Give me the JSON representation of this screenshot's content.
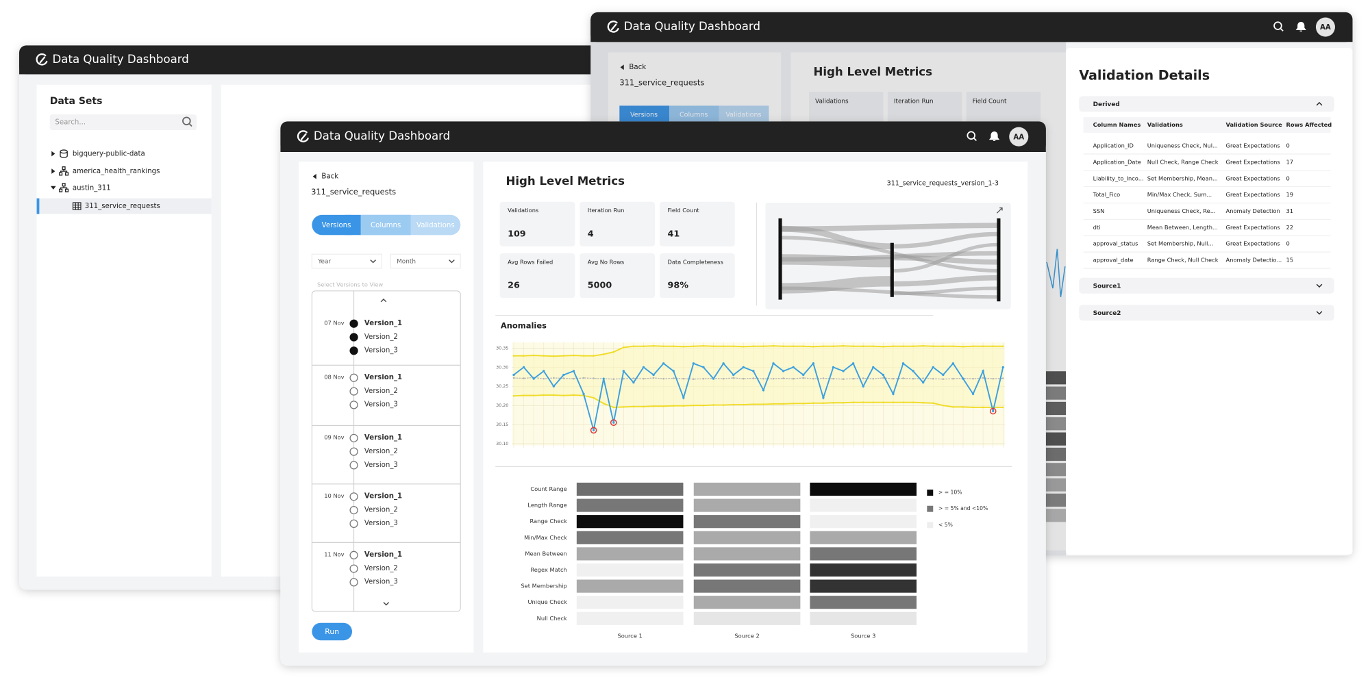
{
  "back_window": {
    "title": "Data Quality Dashboard",
    "sidebar_title": "Data Sets",
    "search_placeholder": "Search...",
    "tree": [
      "bigquery-public-data",
      "america_health_rankings",
      "austin_311",
      "311_service_requests"
    ]
  },
  "right_window": {
    "title": "Data Quality Dashboard",
    "avatar": "AA",
    "back": "Back",
    "dataset": "311_service_requests",
    "tabs": [
      "Versions",
      "Columns",
      "Validations"
    ],
    "metrics_title": "High Level Metrics",
    "metric_labels": [
      "Validations",
      "Iteration Run",
      "Field Count"
    ],
    "details": {
      "title": "Validation Details",
      "sections": [
        "Derived",
        "Source1",
        "Source2"
      ],
      "table": {
        "headers": [
          "Column Names",
          "Validations",
          "Validation Source",
          "Rows Affected"
        ],
        "rows": [
          [
            "Application_ID",
            "Uniqueness Check, Nul...",
            "Great Expectations",
            0
          ],
          [
            "Application_Date",
            "Null Check, Range Check",
            "Great Expectations",
            17
          ],
          [
            "Liability_to_Inco...",
            "Set Membership, Mean...",
            "Great Expectations",
            0
          ],
          [
            "Total_Fico",
            "Min/Max Check, Sum...",
            "Great Expectations",
            19
          ],
          [
            "SSN",
            "Uniqueness Check, Re...",
            "Anomaly Detection",
            31
          ],
          [
            "dti",
            "Mean Between, Length...",
            "Great Expectations",
            22
          ],
          [
            "approval_status",
            "Set Membership, Null...",
            "Great Expectations",
            0
          ],
          [
            "approval_date",
            "Range Check, Null Check",
            "Anomaly Detectio...",
            15
          ]
        ]
      }
    }
  },
  "front_window": {
    "title": "Data Quality Dashboard",
    "avatar": "AA",
    "back": "Back",
    "dataset": "311_service_requests",
    "tabs": [
      "Versions",
      "Columns",
      "Validations"
    ],
    "filters": [
      "Year",
      "Month"
    ],
    "versions_hint": "Select Versions to View",
    "version_groups": [
      {
        "date": "07 Nov",
        "versions": [
          "Version_1",
          "Version_2",
          "Version_3"
        ],
        "selected": true
      },
      {
        "date": "08 Nov",
        "versions": [
          "Version_1",
          "Version_2",
          "Version_3"
        ],
        "selected": false
      },
      {
        "date": "09 Nov",
        "versions": [
          "Version_1",
          "Version_2",
          "Version_3"
        ],
        "selected": false
      },
      {
        "date": "10 Nov",
        "versions": [
          "Version_1",
          "Version_2",
          "Version_3"
        ],
        "selected": false
      },
      {
        "date": "11 Nov",
        "versions": [
          "Version_1",
          "Version_2",
          "Version_3"
        ],
        "selected": false
      }
    ],
    "run": "Run",
    "metrics_title": "High Level Metrics",
    "version_label": "311_service_requests_version_1-3",
    "metrics": [
      {
        "label": "Validations",
        "value": 109
      },
      {
        "label": "Iteration Run",
        "value": 4
      },
      {
        "label": "Field Count",
        "value": 41
      },
      {
        "label": "Avg Rows Failed",
        "value": 26
      },
      {
        "label": "Avg No Rows",
        "value": 5000
      },
      {
        "label": "Data Completeness",
        "value": "98%"
      }
    ],
    "anomalies": {
      "title": "Anomalies",
      "ylim": [
        30.095,
        30.365
      ],
      "yticks": [
        30.35,
        {
          "value": 30.3,
          "label": "30.30"
        },
        30.25,
        {
          "value": 30.2,
          "label": "30.20"
        },
        30.15,
        {
          "value": 30.1,
          "label": "30.10"
        }
      ],
      "anomaly_indices": [
        8,
        10,
        48
      ],
      "anomaly_color": "#e03a3a",
      "series": [
        {
          "color": "#f0dc28",
          "values": [
            30.33,
            30.33,
            30.331,
            30.33,
            30.329,
            30.33,
            30.331,
            30.33,
            30.33,
            30.334,
            30.34,
            30.352,
            30.355,
            30.355,
            30.356,
            30.355,
            30.355,
            30.354,
            30.355,
            30.356,
            30.355,
            30.355,
            30.355,
            30.354,
            30.355,
            30.355,
            30.356,
            30.355,
            30.355,
            30.355,
            30.354,
            30.355,
            30.355,
            30.356,
            30.355,
            30.355,
            30.355,
            30.354,
            30.355,
            30.355,
            30.355,
            30.356,
            30.355,
            30.355,
            30.355,
            30.354,
            30.355,
            30.355,
            30.355,
            30.355
          ]
        },
        {
          "color": "#f0dc28",
          "values": [
            30.225,
            30.226,
            30.226,
            30.227,
            30.227,
            30.226,
            30.227,
            30.226,
            30.22,
            30.205,
            30.195,
            30.196,
            30.197,
            30.197,
            30.198,
            30.198,
            30.199,
            30.199,
            30.2,
            30.2,
            30.201,
            30.201,
            30.202,
            30.202,
            30.203,
            30.203,
            30.204,
            30.204,
            30.205,
            30.205,
            30.206,
            30.206,
            30.207,
            30.207,
            30.208,
            30.208,
            30.208,
            30.208,
            30.208,
            30.208,
            30.208,
            30.207,
            30.206,
            30.2,
            30.196,
            30.196,
            30.195,
            30.195,
            30.195,
            30.195
          ]
        },
        {
          "color": "#b4b4b4",
          "values": [
            30.272,
            30.271,
            30.273,
            30.27,
            30.272,
            30.271,
            30.27,
            30.272,
            30.271,
            30.27,
            30.269,
            30.27,
            30.271,
            30.27,
            30.272,
            30.27,
            30.271,
            30.27,
            30.269,
            30.27,
            30.271,
            30.27,
            30.272,
            30.27,
            30.271,
            30.27,
            30.27,
            30.271,
            30.27,
            30.272,
            30.27,
            30.271,
            30.27,
            30.269,
            30.27,
            30.271,
            30.27,
            30.272,
            30.27,
            30.271,
            30.27,
            30.271,
            30.27,
            30.269,
            30.27,
            30.271,
            30.27,
            30.272,
            30.27,
            30.271
          ]
        },
        {
          "color": "#3aa0e0",
          "values": [
            30.28,
            30.3,
            30.27,
            30.29,
            30.25,
            30.28,
            30.29,
            30.23,
            30.135,
            30.27,
            30.155,
            30.29,
            30.26,
            30.3,
            30.28,
            30.31,
            30.29,
            30.22,
            30.31,
            30.3,
            30.27,
            30.31,
            30.28,
            30.3,
            30.29,
            30.24,
            30.31,
            30.29,
            30.3,
            30.28,
            30.31,
            30.22,
            30.3,
            30.29,
            30.31,
            30.25,
            30.3,
            30.28,
            30.23,
            30.31,
            30.29,
            30.26,
            30.3,
            30.28,
            30.31,
            30.27,
            30.23,
            30.29,
            30.185,
            30.3
          ]
        }
      ]
    },
    "heatmap": {
      "rows": [
        "Count Range",
        "Length Range",
        "Range Check",
        "Min/Max Check",
        "Mean Between",
        "Regex Match",
        "Set Membership",
        "Unique Check",
        "Null Check"
      ],
      "columns": [
        "Source 1",
        "Source 2",
        "Source 3"
      ],
      "cells": [
        [
          "#6e6e6e",
          "#aaaaaa",
          "#0d0d0d"
        ],
        [
          "#777777",
          "#aaaaaa",
          "#f0f0f0"
        ],
        [
          "#0d0d0d",
          "#777777",
          "#f0f0f0"
        ],
        [
          "#777777",
          "#aaaaaa",
          "#aaaaaa"
        ],
        [
          "#aaaaaa",
          "#aaaaaa",
          "#777777"
        ],
        [
          "#f0f0f0",
          "#777777",
          "#333333"
        ],
        [
          "#aaaaaa",
          "#777777",
          "#333333"
        ],
        [
          "#f0f0f0",
          "#aaaaaa",
          "#777777"
        ],
        [
          "#f0f0f0",
          "#e6e6e6",
          "#e6e6e6"
        ]
      ],
      "legend": [
        {
          "label": "> = 10%",
          "color": "#0d0d0d"
        },
        {
          "label": "> = 5% and <10%",
          "color": "#777777"
        },
        {
          "label": "< 5%",
          "color": "#eeeeee"
        }
      ]
    }
  }
}
